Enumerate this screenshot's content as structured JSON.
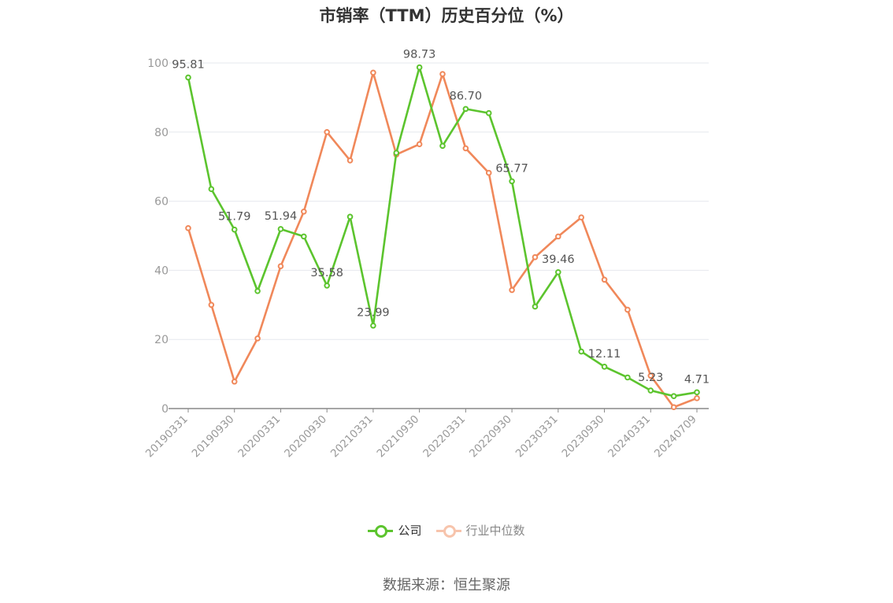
{
  "chart_data": {
    "type": "line",
    "title": "市销率（TTM）历史百分位（%）",
    "xlabel": "",
    "ylabel": "",
    "ylim": [
      0,
      100
    ],
    "yticks": [
      0,
      20,
      40,
      60,
      80,
      100
    ],
    "x": [
      "20190331",
      "20190630",
      "20190930",
      "20191231",
      "20200331",
      "20200630",
      "20200930",
      "20201231",
      "20210331",
      "20210630",
      "20210930",
      "20211231",
      "20220331",
      "20220630",
      "20220930",
      "20221231",
      "20230331",
      "20230630",
      "20230930",
      "20231231",
      "20240331",
      "20240630",
      "20240709"
    ],
    "xtick_labels": [
      "20190331",
      "20190930",
      "20200331",
      "20200930",
      "20210331",
      "20210930",
      "20220331",
      "20220930",
      "20230331",
      "20230930",
      "20240331",
      "20240709"
    ],
    "grid": true,
    "legend_position": "bottom",
    "series": [
      {
        "name": "公司",
        "color": "#5cc42e",
        "values": [
          95.81,
          63.5,
          51.79,
          34.0,
          51.94,
          49.8,
          35.58,
          55.5,
          23.99,
          74.0,
          98.73,
          76.0,
          86.7,
          85.5,
          65.77,
          29.5,
          39.46,
          16.5,
          12.11,
          9.0,
          5.23,
          3.6,
          4.71
        ],
        "labels": {
          "0": "95.81",
          "2": "51.79",
          "4": "51.94",
          "6": "35.58",
          "8": "23.99",
          "10": "98.73",
          "12": "86.70",
          "14": "65.77",
          "16": "39.46",
          "18": "12.11",
          "20": "5.23",
          "22": "4.71"
        }
      },
      {
        "name": "行业中位数",
        "color": "#f0885a",
        "values": [
          52.2,
          30.0,
          7.8,
          20.3,
          41.2,
          57.0,
          80.0,
          71.8,
          97.2,
          73.5,
          76.5,
          96.8,
          75.3,
          68.2,
          34.3,
          43.8,
          49.8,
          55.3,
          37.3,
          28.6,
          9.5,
          0.4,
          3.0
        ]
      }
    ]
  },
  "legend": {
    "company": "公司",
    "industry": "行业中位数"
  },
  "footer": {
    "source": "数据来源：恒生聚源"
  }
}
